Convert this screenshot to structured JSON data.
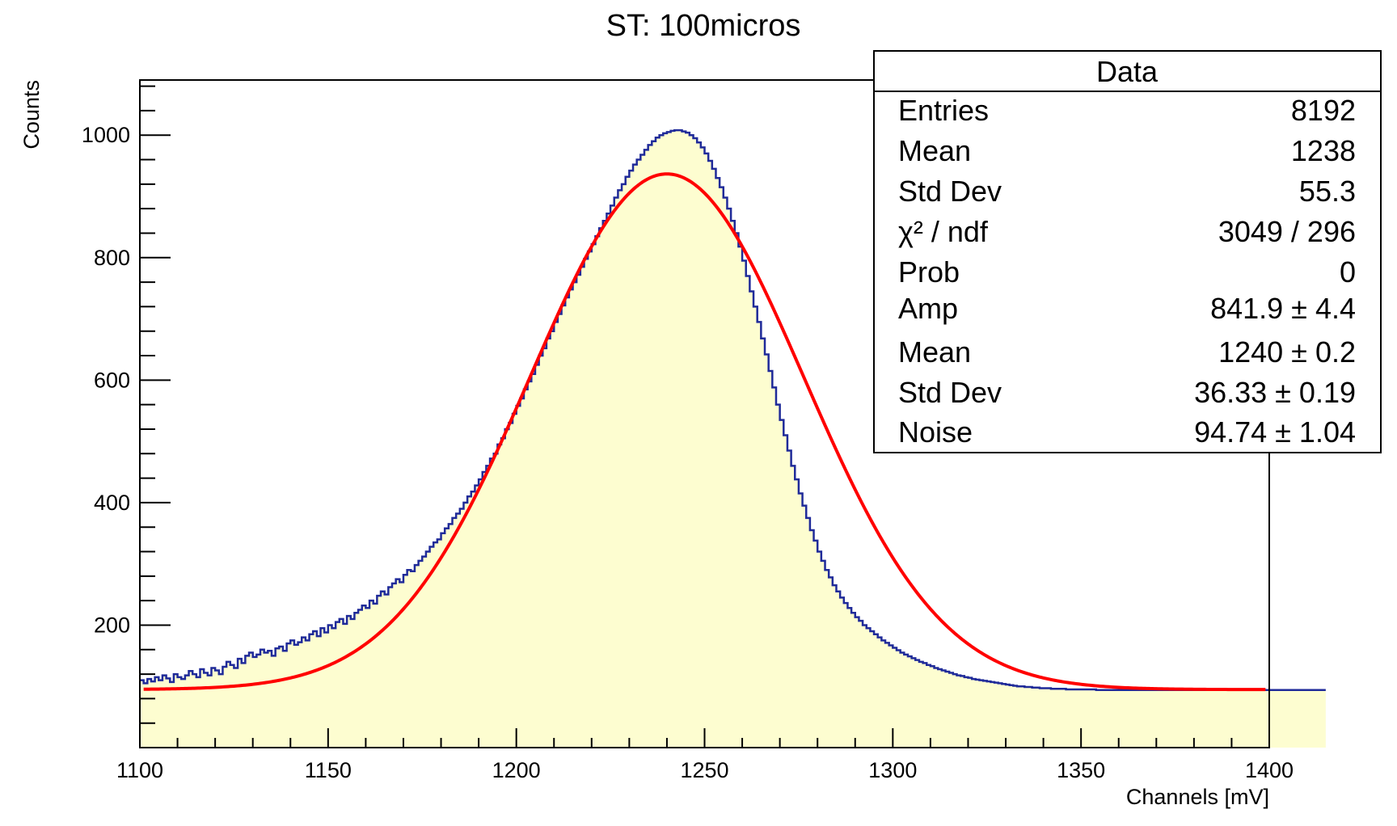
{
  "chart_data": {
    "type": "bar",
    "title": "ST: 100micros",
    "xlabel": "Channels [mV]",
    "ylabel": "Counts",
    "xlim": [
      1100,
      1400
    ],
    "ylim": [
      0,
      1090
    ],
    "x_ticks": [
      "1100",
      "1150",
      "1200",
      "1250",
      "1300",
      "1350",
      "1400"
    ],
    "y_ticks": [
      "200",
      "400",
      "600",
      "800",
      "1000"
    ],
    "grid": false,
    "colors": {
      "histogram_line": "#1f2a99",
      "histogram_fill": "#fdfdd0",
      "fit_line": "#ff0000"
    },
    "series": [
      {
        "style": "histogram",
        "x_start": 1100,
        "bin_width": 1,
        "values": [
          110,
          105,
          112,
          108,
          115,
          110,
          118,
          113,
          107,
          120,
          115,
          112,
          118,
          125,
          120,
          115,
          128,
          122,
          118,
          130,
          126,
          120,
          132,
          140,
          135,
          130,
          145,
          138,
          150,
          155,
          148,
          152,
          160,
          155,
          158,
          150,
          162,
          165,
          158,
          170,
          175,
          168,
          172,
          180,
          175,
          185,
          190,
          182,
          195,
          188,
          200,
          195,
          205,
          210,
          202,
          215,
          210,
          220,
          225,
          232,
          228,
          240,
          235,
          248,
          255,
          250,
          262,
          268,
          275,
          270,
          282,
          290,
          288,
          298,
          305,
          312,
          320,
          328,
          335,
          340,
          350,
          358,
          365,
          375,
          382,
          390,
          400,
          410,
          418,
          428,
          438,
          450,
          460,
          472,
          480,
          495,
          505,
          520,
          530,
          545,
          558,
          570,
          585,
          598,
          610,
          625,
          640,
          652,
          668,
          680,
          695,
          708,
          722,
          735,
          748,
          760,
          772,
          785,
          798,
          810,
          822,
          835,
          848,
          860,
          872,
          885,
          898,
          910,
          920,
          932,
          942,
          952,
          960,
          968,
          976,
          984,
          990,
          996,
          1000,
          1003,
          1005,
          1007,
          1008,
          1008,
          1006,
          1004,
          1000,
          995,
          988,
          980,
          970,
          958,
          945,
          930,
          915,
          898,
          880,
          860,
          840,
          818,
          795,
          770,
          745,
          720,
          695,
          668,
          642,
          615,
          588,
          560,
          535,
          510,
          485,
          460,
          438,
          415,
          395,
          375,
          355,
          338,
          320,
          305,
          290,
          278,
          265,
          255,
          245,
          236,
          228,
          220,
          213,
          207,
          200,
          195,
          190,
          185,
          180,
          175,
          171,
          167,
          163,
          159,
          155,
          152,
          149,
          146,
          143,
          140,
          138,
          135,
          133,
          130,
          128,
          126,
          124,
          122,
          120,
          118,
          117,
          115,
          114,
          112,
          111,
          110,
          109,
          108,
          107,
          106,
          105,
          104,
          103,
          102,
          101,
          100,
          100,
          99,
          99,
          98,
          98,
          97,
          97,
          97,
          96,
          96,
          96,
          96,
          95,
          95,
          95,
          95,
          95,
          95,
          95,
          95,
          94,
          94,
          94,
          94,
          94,
          94,
          94,
          94,
          94,
          94,
          94,
          94,
          94,
          94,
          94,
          94,
          94,
          94,
          94,
          94,
          94,
          94,
          94,
          94,
          94,
          94,
          94,
          94,
          94,
          94,
          94,
          94,
          94,
          94,
          94,
          94,
          94,
          94,
          94,
          94,
          94,
          94,
          94,
          94,
          94,
          94,
          94,
          94,
          94,
          94,
          94,
          94,
          94,
          94,
          94,
          94,
          94,
          94,
          94,
          94,
          94
        ]
      },
      {
        "style": "fit",
        "function": "Noise + Amp*exp(-0.5*((x-Mean)/StdDev)^2)",
        "params": {
          "Amp": 841.9,
          "Mean": 1240,
          "StdDev": 36.33,
          "Noise": 94.74
        },
        "range": [
          1101,
          1399
        ]
      }
    ],
    "stats_box": {
      "title": "Data",
      "position": "top-right",
      "rows": [
        {
          "label": "Entries",
          "value": "8192"
        },
        {
          "label": "Mean",
          "value": "1238"
        },
        {
          "label": "Std Dev",
          "value": "55.3"
        },
        {
          "label": "χ² / ndf",
          "value": "3049 / 296"
        },
        {
          "label": "Prob",
          "value": "0"
        },
        {
          "label": "Amp",
          "value": "841.9 ± 4.4"
        },
        {
          "label": "Mean",
          "value": "1240 ± 0.2"
        },
        {
          "label": "Std Dev",
          "value": "36.33 ± 0.19"
        },
        {
          "label": "Noise",
          "value": "94.74 ± 1.04"
        }
      ]
    }
  }
}
